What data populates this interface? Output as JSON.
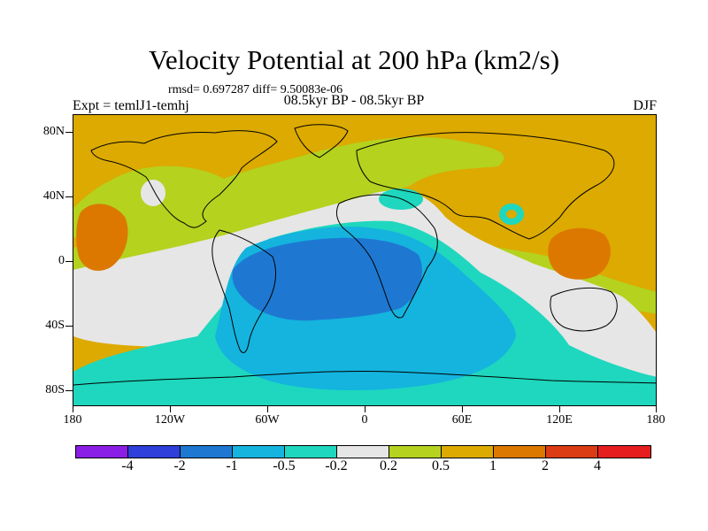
{
  "title": "Velocity Potential at 200 hPa (km2/s)",
  "stats": "rmsd= 0.697287 diff= 9.50083e-06",
  "experiment": "Expt = temlJ1-temhj",
  "period": "08.5kyr BP - 08.5kyr BP",
  "season": "DJF",
  "lat_labels": [
    "80N",
    "40N",
    "0",
    "40S",
    "80S"
  ],
  "lon_labels": [
    "180",
    "120W",
    "60W",
    "0",
    "60E",
    "120E",
    "180"
  ],
  "colorbar": {
    "labels": [
      "-4",
      "-2",
      "-1",
      "-0.5",
      "-0.2",
      "0.2",
      "0.5",
      "1",
      "2",
      "4"
    ],
    "colors": [
      "#8a1ee6",
      "#2f3fd9",
      "#1e78d2",
      "#14b4de",
      "#1ed7be",
      "#e6e6e6",
      "#b4d21e",
      "#dcaa00",
      "#dc7800",
      "#dc3c14",
      "#e61e1e"
    ]
  },
  "map_colors": {
    "bg": "#dcaa00",
    "lightgreen": "#b4d21e",
    "gray": "#e6e6e6",
    "teal": "#1ed7be",
    "cyan": "#14b4de",
    "blue": "#1e78d2",
    "orange": "#dc7800",
    "coast": "#000000"
  }
}
